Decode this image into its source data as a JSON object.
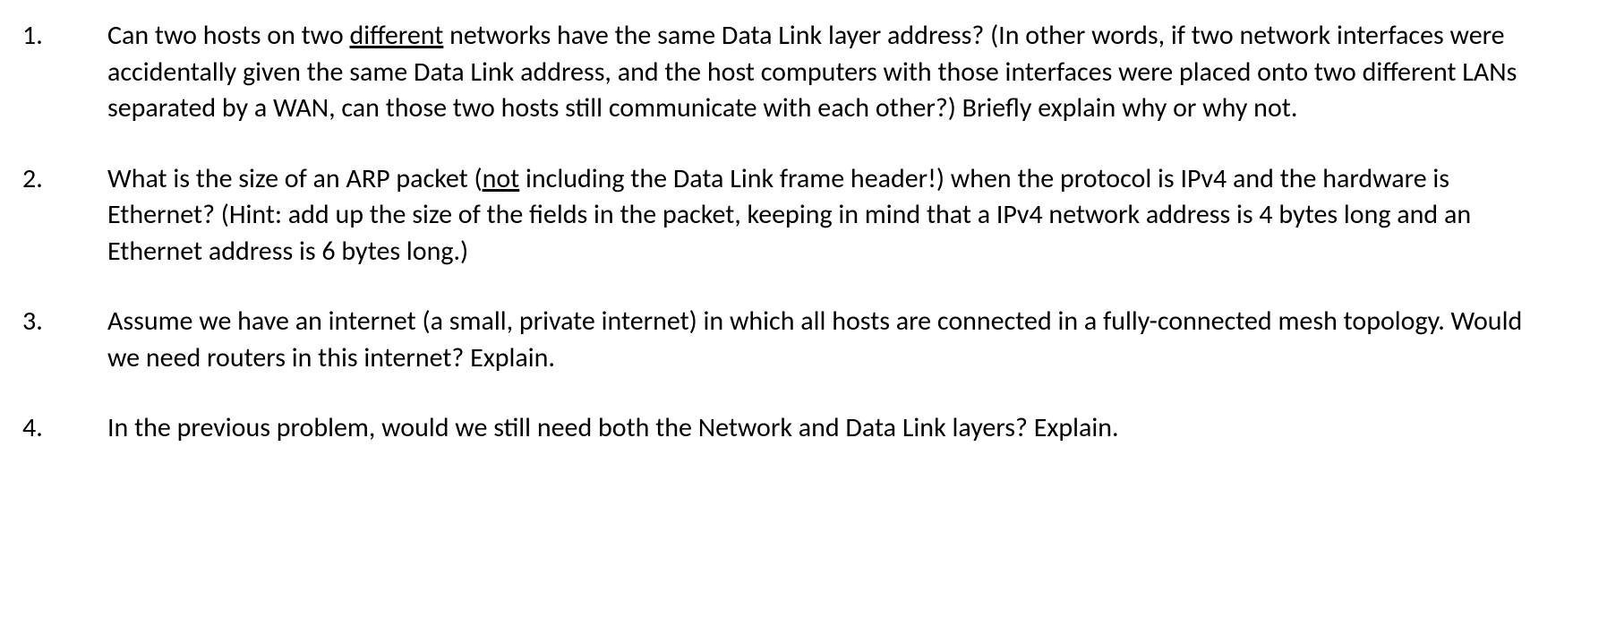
{
  "document": {
    "text_color": "#000000",
    "background_color": "#ffffff",
    "font_family": "Calibri",
    "font_size_pt": 22,
    "questions": [
      {
        "number": "1.",
        "segments": [
          {
            "text": "Can two hosts on two ",
            "underline": false
          },
          {
            "text": "different",
            "underline": true
          },
          {
            "text": " networks have the same Data Link layer address?  (In other words, if two network interfaces were accidentally given the same Data Link address, and the host computers with those interfaces were placed onto two different LANs separated by a WAN, can those two hosts still communicate with each other?)  Briefly explain why or why not.",
            "underline": false
          }
        ]
      },
      {
        "number": "2.",
        "segments": [
          {
            "text": "What is the size of an ARP packet (",
            "underline": false
          },
          {
            "text": "not",
            "underline": true
          },
          {
            "text": " including the Data Link frame header!) when the protocol is IPv4 and the hardware is Ethernet?  (Hint: add up the size of the fields in the packet, keeping in mind that a IPv4 network address is 4 bytes long and an Ethernet address is 6 bytes long.)",
            "underline": false
          }
        ]
      },
      {
        "number": "3.",
        "segments": [
          {
            "text": "Assume we have an internet (a small, private internet) in which all hosts are connected in a fully-connected mesh topology.  Would we need routers in this internet?  Explain.",
            "underline": false
          }
        ]
      },
      {
        "number": "4.",
        "segments": [
          {
            "text": "In the previous problem, would we still need both the Network and Data Link layers?  Explain.",
            "underline": false
          }
        ]
      }
    ]
  }
}
